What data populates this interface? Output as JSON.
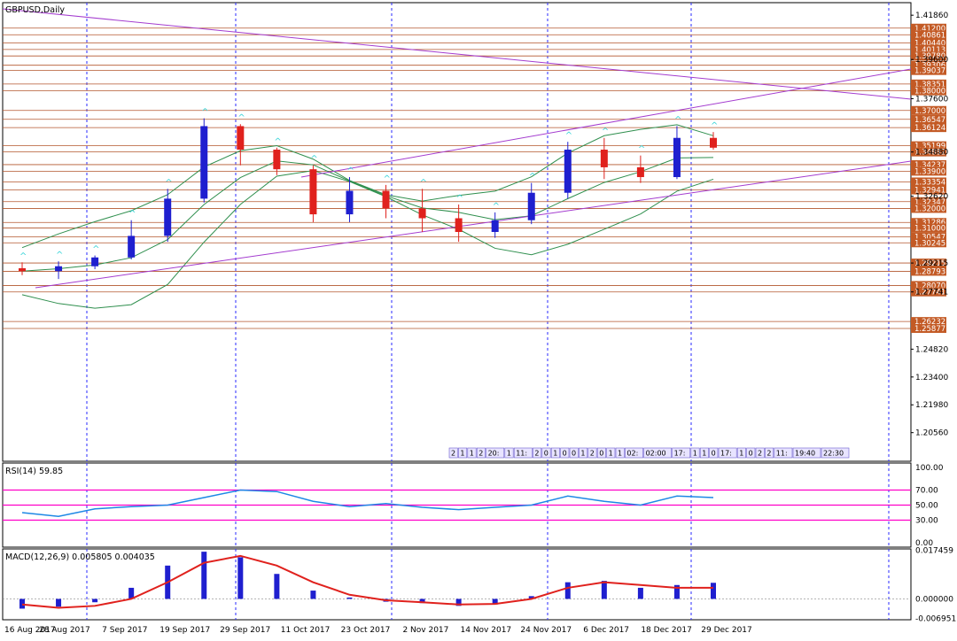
{
  "chart_data": [
    {
      "type": "candlestick",
      "title": "GBPUSD,Daily",
      "xlabel": "",
      "ylabel": "",
      "ylim": [
        1.191,
        1.425
      ],
      "grid": "vertical dashed",
      "x_tick_labels": [
        "16 Aug 2017",
        "28 Aug 2017",
        "7 Sep 2017",
        "19 Sep 2017",
        "29 Sep 2017",
        "11 Oct 2017",
        "23 Oct 2017",
        "2 Nov 2017",
        "14 Nov 2017",
        "24 Nov 2017",
        "6 Dec 2017",
        "18 Dec 2017",
        "29 Dec 2017"
      ],
      "y_tick_labels": [
        "1.41860",
        "1.39600",
        "1.37600",
        "1.34880",
        "1.32620",
        "1.29215",
        "1.27741",
        "1.24820",
        "1.23400",
        "1.21980",
        "1.20560"
      ],
      "price_level_labels": [
        "1.41200",
        "1.40861",
        "1.40440",
        "1.40113",
        "1.39780",
        "1.39306",
        "1.39037",
        "1.38351",
        "1.38000",
        "1.37000",
        "1.36547",
        "1.36124",
        "1.35199",
        "1.34882",
        "1.34237",
        "1.33900",
        "1.33354",
        "1.32941",
        "1.32347",
        "1.32000",
        "1.31286",
        "1.31000",
        "1.30547",
        "1.30245",
        "1.29215",
        "1.28793",
        "1.28070",
        "1.27741",
        "1.26232",
        "1.25877"
      ],
      "candles": [
        {
          "o": 1.2895,
          "h": 1.2925,
          "l": 1.286,
          "c": 1.288
        },
        {
          "o": 1.288,
          "h": 1.293,
          "l": 1.284,
          "c": 1.2905
        },
        {
          "o": 1.2905,
          "h": 1.296,
          "l": 1.289,
          "c": 1.295
        },
        {
          "o": 1.295,
          "h": 1.314,
          "l": 1.294,
          "c": 1.306
        },
        {
          "o": 1.306,
          "h": 1.33,
          "l": 1.303,
          "c": 1.325
        },
        {
          "o": 1.325,
          "h": 1.366,
          "l": 1.323,
          "c": 1.362
        },
        {
          "o": 1.362,
          "h": 1.363,
          "l": 1.342,
          "c": 1.35
        },
        {
          "o": 1.35,
          "h": 1.351,
          "l": 1.337,
          "c": 1.34
        },
        {
          "o": 1.34,
          "h": 1.342,
          "l": 1.313,
          "c": 1.317
        },
        {
          "o": 1.317,
          "h": 1.336,
          "l": 1.313,
          "c": 1.329
        },
        {
          "o": 1.329,
          "h": 1.332,
          "l": 1.315,
          "c": 1.32
        },
        {
          "o": 1.32,
          "h": 1.33,
          "l": 1.308,
          "c": 1.315
        },
        {
          "o": 1.315,
          "h": 1.322,
          "l": 1.303,
          "c": 1.308
        },
        {
          "o": 1.308,
          "h": 1.318,
          "l": 1.305,
          "c": 1.314
        },
        {
          "o": 1.314,
          "h": 1.333,
          "l": 1.312,
          "c": 1.328
        },
        {
          "o": 1.328,
          "h": 1.354,
          "l": 1.325,
          "c": 1.35
        },
        {
          "o": 1.35,
          "h": 1.356,
          "l": 1.335,
          "c": 1.341
        },
        {
          "o": 1.341,
          "h": 1.347,
          "l": 1.333,
          "c": 1.336
        },
        {
          "o": 1.336,
          "h": 1.362,
          "l": 1.335,
          "c": 1.356
        },
        {
          "o": 1.356,
          "h": 1.359,
          "l": 1.35,
          "c": 1.351
        }
      ],
      "time_tags": [
        "2",
        "1",
        "1",
        "2",
        "20:",
        "1",
        "11:",
        "2",
        "0",
        "1",
        "0",
        "0",
        "1",
        "2",
        "0",
        "1",
        "1",
        "02:",
        "02:00",
        "17:",
        "1",
        "1",
        "0",
        "17:",
        "1",
        "0",
        "2",
        "2",
        "11:",
        "19:40",
        "22:30"
      ]
    },
    {
      "type": "line",
      "title": "RSI(14) 59.85",
      "ylim": [
        0,
        100
      ],
      "y_tick_labels": [
        "100.00",
        "70.00",
        "50.00",
        "30.00",
        "0.00"
      ],
      "levels": [
        70,
        50,
        30
      ],
      "series": [
        {
          "values": [
            40,
            35,
            45,
            48,
            50,
            60,
            70,
            68,
            55,
            48,
            52,
            47,
            44,
            47,
            50,
            62,
            55,
            50,
            62,
            60
          ]
        }
      ]
    },
    {
      "type": "bar",
      "title": "MACD(12,26,9) 0.005805 0.004035",
      "ylim": [
        -0.0075,
        0.018
      ],
      "y_tick_labels": [
        "0.017459",
        "0.000000",
        "-0.006951"
      ],
      "series": [
        {
          "values": [
            -0.0035,
            -0.0028,
            -0.0012,
            0.004,
            0.012,
            0.017,
            0.015,
            0.009,
            0.003,
            0.0005,
            -0.001,
            -0.0015,
            -0.0025,
            -0.002,
            0.001,
            0.006,
            0.0065,
            0.004,
            0.005,
            0.0058
          ]
        },
        {
          "values": [
            -0.002,
            -0.0032,
            -0.0025,
            0.0,
            0.006,
            0.013,
            0.0155,
            0.012,
            0.006,
            0.0015,
            -0.0005,
            -0.0012,
            -0.002,
            -0.0018,
            0.0,
            0.004,
            0.006,
            0.005,
            0.004,
            0.004
          ]
        }
      ]
    }
  ],
  "colors": {
    "bull": "#1f1fcf",
    "bear": "#e0211d",
    "level_line": "#b3562d",
    "price_tag": "#c35a25",
    "band": "#2f8f4e",
    "trend": "#a43ccf",
    "rsi_line": "#1e88e5",
    "rsi_level": "#ff00c8",
    "macd_hist": "#1f1fcf",
    "macd_signal": "#e0211d",
    "grid": "#2a2aff",
    "marker": "#38d4d8"
  }
}
